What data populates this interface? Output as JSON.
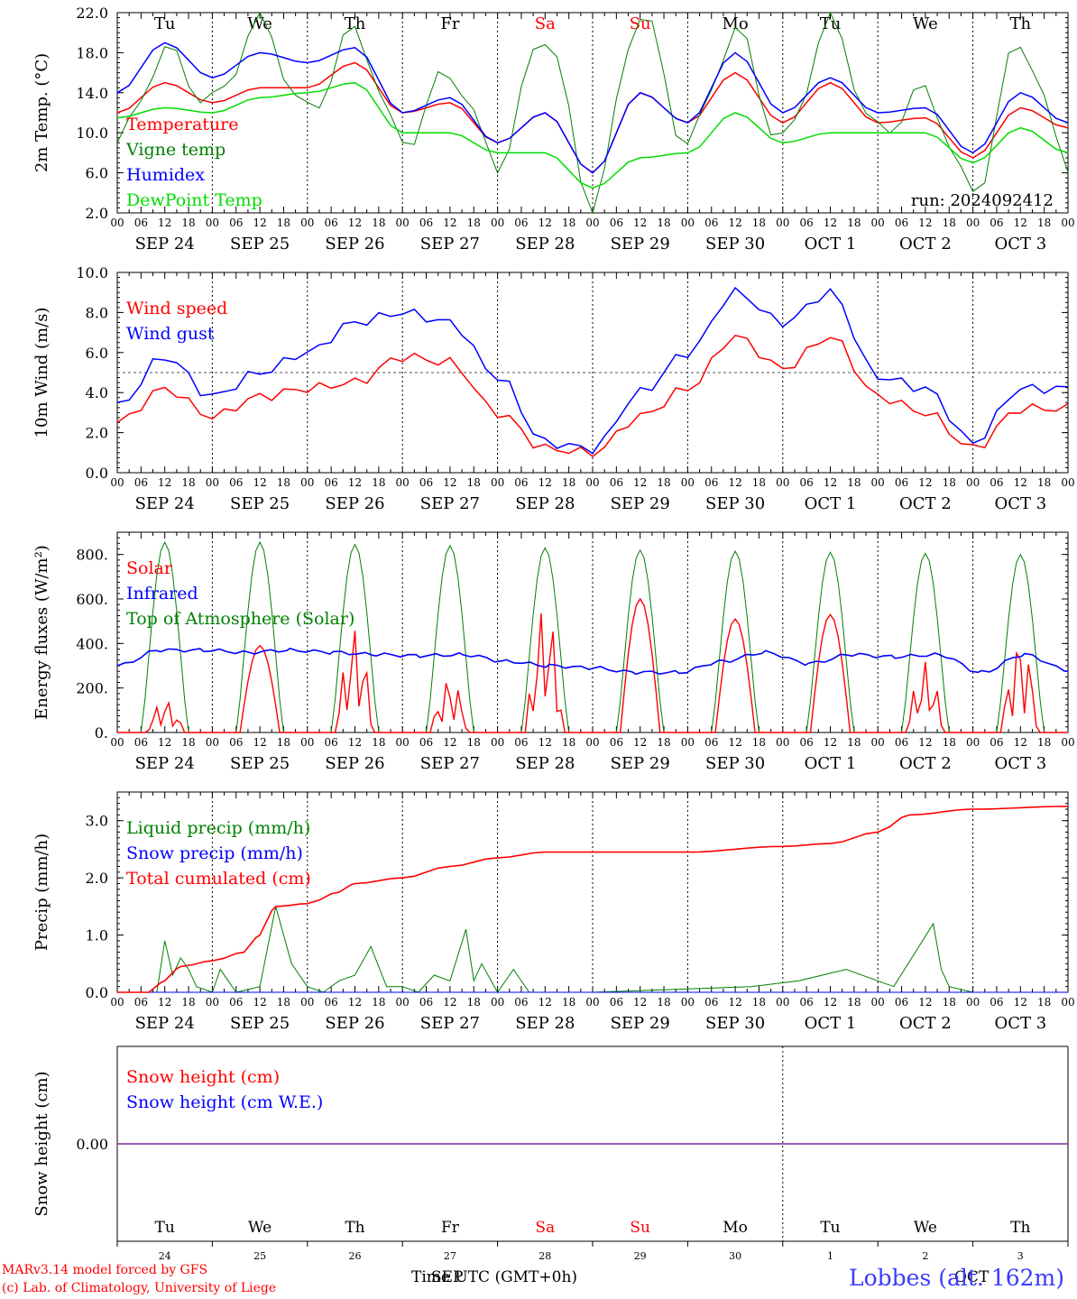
{
  "days": [
    "Tu",
    "We",
    "Th",
    "Fr",
    "Sa",
    "Su",
    "Mo",
    "Tu",
    "We",
    "Th"
  ],
  "dates": [
    "SEP 24",
    "SEP 25",
    "SEP 26",
    "SEP 27",
    "SEP 28",
    "SEP 29",
    "SEP 30",
    "OCT  1",
    "OCT  2",
    "OCT  3"
  ],
  "day_numbers": [
    "24",
    "25",
    "26",
    "27",
    "28",
    "29",
    "30",
    "1",
    "2",
    "3"
  ],
  "hour_ticks": [
    "00",
    "06",
    "12",
    "18"
  ],
  "weekend_color": "#ff0000",
  "run_label": "run: 2024092412",
  "footer": {
    "credit1": "MARv3.14 model forced by GFS",
    "credit2": "(c) Lab. of Climatology, University of Liege",
    "xaxis_title": "Time UTC (GMT+0h)",
    "month1": "SEP",
    "month2": "OCT",
    "location": "Lobbes (alt. 162m)"
  },
  "chart_data": [
    {
      "type": "line",
      "ylabel": "2m Temp. (°C)",
      "ylim": [
        2,
        22
      ],
      "yticks": [
        "2.0",
        "6.0",
        "10.0",
        "14.0",
        "18.0",
        "22.0"
      ],
      "x_hours": [
        0,
        12,
        24,
        36,
        48,
        60,
        72,
        84,
        96,
        108,
        120,
        132,
        144,
        156,
        168,
        180,
        192,
        204,
        216,
        228,
        240
      ],
      "series": [
        {
          "name": "Temperature",
          "color": "#ff0000",
          "values": [
            12,
            15,
            13,
            14.5,
            14.5,
            17,
            12,
            13,
            9,
            12,
            6,
            14,
            11,
            16,
            11,
            15,
            11,
            11.5,
            7.5,
            12.5,
            10.5
          ]
        },
        {
          "name": "Vigne temp",
          "color": "#008000",
          "values": [
            9,
            18,
            13,
            21,
            12,
            20,
            9,
            16,
            7,
            20,
            3,
            22,
            9,
            20,
            9,
            21,
            10,
            14,
            4,
            19,
            7
          ]
        },
        {
          "name": "Humidex",
          "color": "#0000ff",
          "values": [
            14,
            19,
            15.5,
            18,
            17,
            18.5,
            12,
            13.5,
            9,
            12,
            6,
            14,
            11,
            18,
            12,
            15.5,
            12,
            12.5,
            8,
            14,
            11
          ]
        },
        {
          "name": "DewPoint Temp",
          "color": "#00dd00",
          "values": [
            11.5,
            12.5,
            12,
            13.5,
            14,
            15,
            10,
            10,
            8,
            8,
            4.5,
            7.5,
            8,
            12,
            9,
            10,
            10,
            10,
            7,
            10.5,
            8
          ]
        }
      ]
    },
    {
      "type": "line",
      "ylabel": "10m Wind (m/s)",
      "ylim": [
        0,
        10
      ],
      "yticks": [
        "0.0",
        "2.0",
        "4.0",
        "6.0",
        "8.0",
        "10.0"
      ],
      "ref_line": 5,
      "x_hours": [
        0,
        12,
        24,
        36,
        48,
        60,
        72,
        84,
        96,
        108,
        120,
        132,
        144,
        156,
        168,
        180,
        192,
        204,
        216,
        228,
        240
      ],
      "series": [
        {
          "name": "Wind speed",
          "color": "#ff0000",
          "values": [
            2.5,
            4.2,
            2.8,
            3.8,
            4.2,
            4.5,
            5.8,
            5.5,
            3.0,
            1.2,
            1.0,
            2.8,
            4.2,
            6.8,
            5.2,
            6.8,
            3.8,
            3.0,
            1.2,
            3.2,
            3.2
          ]
        },
        {
          "name": "Wind gust",
          "color": "#0000ff",
          "values": [
            3.3,
            5.8,
            3.8,
            5.0,
            6.0,
            7.5,
            8.0,
            7.5,
            4.8,
            1.5,
            1.2,
            4.0,
            6.0,
            9.0,
            7.5,
            9.0,
            4.8,
            4.2,
            1.5,
            4.2,
            4.2
          ]
        }
      ]
    },
    {
      "type": "line",
      "ylabel": "Energy fluxes (W/m²)",
      "ylim": [
        0,
        900
      ],
      "yticks": [
        "0.",
        "200.",
        "400.",
        "600.",
        "800."
      ],
      "solar_peaks": [
        150,
        390,
        480,
        250,
        580,
        600,
        510,
        530,
        320,
        440
      ],
      "toa_peaks": [
        855,
        855,
        845,
        840,
        830,
        820,
        815,
        810,
        805,
        800
      ],
      "infrared": [
        300,
        370,
        370,
        360,
        370,
        360,
        350,
        345,
        350,
        320,
        300,
        290,
        270,
        270,
        320,
        360,
        310,
        350,
        340,
        350,
        270,
        350,
        280
      ],
      "series": [
        {
          "name": "Solar",
          "color": "#ff0000"
        },
        {
          "name": "Infrared",
          "color": "#0000ff"
        },
        {
          "name": "Top of Atmosphere (Solar)",
          "color": "#008000"
        }
      ]
    },
    {
      "type": "line",
      "ylabel": "Precip (mm/h)",
      "ylim": [
        0,
        3.5
      ],
      "yticks": [
        "0.0",
        "1.0",
        "2.0",
        "3.0"
      ],
      "series": [
        {
          "name": "Liquid precip (mm/h)",
          "color": "#008000",
          "x_hours": [
            0,
            10,
            12,
            14,
            16,
            18,
            20,
            24,
            26,
            30,
            36,
            40,
            44,
            48,
            52,
            56,
            60,
            64,
            68,
            72,
            76,
            80,
            84,
            88,
            90,
            92,
            96,
            100,
            104,
            108,
            112,
            120,
            160,
            172,
            184,
            196,
            206,
            208,
            210,
            216,
            240
          ],
          "values": [
            0,
            0,
            0.9,
            0.3,
            0.6,
            0.4,
            0.1,
            0,
            0.4,
            0,
            0.1,
            1.5,
            0.5,
            0.1,
            0,
            0.2,
            0.3,
            0.8,
            0.1,
            0.1,
            0,
            0.3,
            0.2,
            1.1,
            0.2,
            0.5,
            0,
            0.4,
            0,
            0,
            0,
            0,
            0.1,
            0.2,
            0.4,
            0.1,
            1.2,
            0.4,
            0.1,
            0,
            0
          ]
        },
        {
          "name": "Snow precip (mm/h)",
          "color": "#0000ff",
          "x_hours": [
            0,
            240
          ],
          "values": [
            0,
            0
          ]
        },
        {
          "name": "Total cumulated (cm)",
          "color": "#ff0000",
          "x_hours": [
            0,
            8,
            12,
            16,
            24,
            32,
            36,
            40,
            48,
            56,
            60,
            72,
            84,
            96,
            108,
            120,
            144,
            168,
            180,
            192,
            200,
            216,
            240
          ],
          "values": [
            0,
            0,
            0.2,
            0.45,
            0.55,
            0.7,
            1.0,
            1.5,
            1.55,
            1.75,
            1.9,
            2.0,
            2.2,
            2.35,
            2.45,
            2.45,
            2.45,
            2.55,
            2.6,
            2.8,
            3.1,
            3.2,
            3.25
          ]
        }
      ]
    },
    {
      "type": "line",
      "ylabel": "Snow height (cm)",
      "ylim": [
        -1,
        1
      ],
      "yticks": [
        "0.00"
      ],
      "series": [
        {
          "name": "Snow height (cm)",
          "color": "#ff0000",
          "x_hours": [
            0,
            240
          ],
          "values": [
            0,
            0
          ]
        },
        {
          "name": "Snow height (cm W.E.)",
          "color": "#0000ff",
          "x_hours": [
            0,
            240
          ],
          "values": [
            0,
            0
          ]
        }
      ]
    }
  ]
}
